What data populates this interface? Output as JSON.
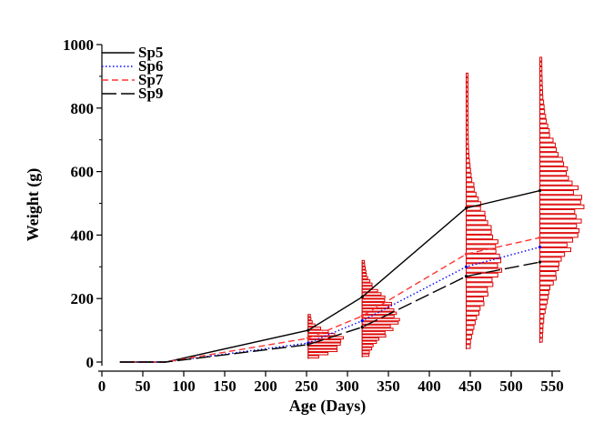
{
  "chart_data": {
    "type": "line",
    "xlabel": "Age (Days)",
    "ylabel": "Weight (g)",
    "xlim": [
      0,
      560
    ],
    "ylim": [
      0,
      1000
    ],
    "xticks": [
      "0",
      "50",
      "100",
      "150",
      "200",
      "250",
      "300",
      "350",
      "400",
      "450",
      "500",
      "550"
    ],
    "yticks": [
      "0",
      "200",
      "400",
      "600",
      "800",
      "1000"
    ],
    "legend_position": "top-left",
    "series": [
      {
        "name": "Sp5",
        "color": "#000000",
        "dash": "solid",
        "x": [
          22,
          78,
          252,
          318,
          445,
          535
        ],
        "y": [
          0,
          0,
          100,
          205,
          485,
          540
        ]
      },
      {
        "name": "Sp6",
        "color": "#0000ff",
        "dash": "dotted",
        "x": [
          22,
          78,
          252,
          318,
          445,
          535
        ],
        "y": [
          0,
          0,
          60,
          130,
          300,
          362
        ]
      },
      {
        "name": "Sp7",
        "color": "#ff3333",
        "dash": "dashed",
        "x": [
          22,
          78,
          252,
          318,
          445,
          535
        ],
        "y": [
          0,
          0,
          75,
          145,
          340,
          392
        ]
      },
      {
        "name": "Sp9",
        "color": "#000000",
        "dash": "longdash",
        "x": [
          22,
          78,
          252,
          318,
          445,
          535
        ],
        "y": [
          0,
          0,
          55,
          110,
          270,
          315
        ]
      }
    ],
    "distributions": [
      {
        "age": 252,
        "y_min": 10,
        "y_max": 150,
        "peak": 60,
        "sd": 28,
        "width": 45,
        "nbins": 14
      },
      {
        "age": 318,
        "y_min": 15,
        "y_max": 320,
        "peak": 140,
        "sd": 60,
        "width": 40,
        "nbins": 30
      },
      {
        "age": 445,
        "y_min": 40,
        "y_max": 910,
        "peak": 330,
        "sd": 120,
        "width": 40,
        "nbins": 58
      },
      {
        "age": 535,
        "y_min": 60,
        "y_max": 960,
        "peak": 470,
        "sd": 140,
        "width": 48,
        "nbins": 60
      }
    ],
    "distribution_color": "#dd0000"
  }
}
